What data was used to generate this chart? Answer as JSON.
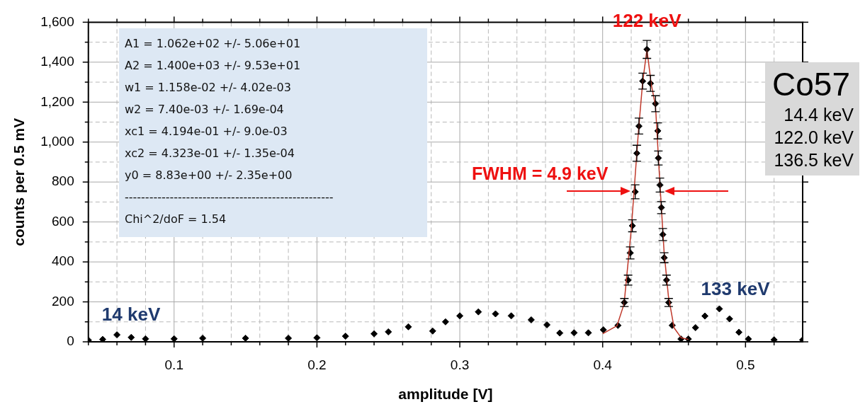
{
  "chart_data": {
    "type": "scatter",
    "xlabel": "amplitude [V]",
    "ylabel": "counts per 0.5 mV",
    "xlim": [
      0.04,
      0.54
    ],
    "xticks": [
      {
        "value": 0.04,
        "label": null
      },
      {
        "value": 0.06,
        "label": null
      },
      {
        "value": 0.08,
        "label": null
      },
      0.1,
      {
        "value": 0.12,
        "label": null
      },
      {
        "value": 0.14,
        "label": null
      },
      {
        "value": 0.16,
        "label": null
      },
      {
        "value": 0.18,
        "label": null
      },
      0.2,
      {
        "value": 0.22,
        "label": null
      },
      {
        "value": 0.24,
        "label": null
      },
      {
        "value": 0.26,
        "label": null
      },
      {
        "value": 0.28,
        "label": null
      },
      0.3,
      {
        "value": 0.32,
        "label": null
      },
      {
        "value": 0.34,
        "label": null
      },
      {
        "value": 0.36,
        "label": null
      },
      {
        "value": 0.38,
        "label": null
      },
      0.4,
      {
        "value": 0.42,
        "label": null
      },
      {
        "value": 0.44,
        "label": null
      },
      {
        "value": 0.46,
        "label": null
      },
      {
        "value": 0.48,
        "label": null
      },
      0.5,
      {
        "value": 0.52,
        "label": null
      }
    ],
    "ylim": [
      0,
      1600
    ],
    "yticks": [
      {
        "value": 0,
        "label": "0"
      },
      {
        "value": 100,
        "label": null
      },
      {
        "value": 200,
        "label": "200"
      },
      {
        "value": 300,
        "label": null
      },
      {
        "value": 400,
        "label": "400"
      },
      {
        "value": 500,
        "label": null
      },
      {
        "value": 600,
        "label": "600"
      },
      {
        "value": 700,
        "label": null
      },
      {
        "value": 800,
        "label": "800"
      },
      {
        "value": 900,
        "label": null
      },
      {
        "value": 1000,
        "label": "1,000"
      },
      {
        "value": 1100,
        "label": null
      },
      {
        "value": 1200,
        "label": "1,200"
      },
      {
        "value": 1300,
        "label": null
      },
      {
        "value": 1400,
        "label": "1,400"
      },
      {
        "value": 1500,
        "label": null
      },
      {
        "value": 1600,
        "label": "1,600"
      }
    ],
    "grid": true,
    "legend": false,
    "series": [
      {
        "marker": "diamond",
        "color": "#000000",
        "x": [
          0.04,
          0.05,
          0.06,
          0.07,
          0.08,
          0.1,
          0.12,
          0.15,
          0.18,
          0.2,
          0.22,
          0.24,
          0.25,
          0.264,
          0.281,
          0.29,
          0.3,
          0.313,
          0.325,
          0.336,
          0.35,
          0.361,
          0.37,
          0.38,
          0.39,
          0.4005,
          0.4107,
          0.4152,
          0.4178,
          0.4193,
          0.4208,
          0.4228,
          0.4239,
          0.4254,
          0.428,
          0.431,
          0.4335,
          0.437,
          0.4386,
          0.439,
          0.4401,
          0.4411,
          0.4421,
          0.4431,
          0.4447,
          0.4462,
          0.4487,
          0.4548,
          0.46,
          0.465,
          0.4716,
          0.4817,
          0.4888,
          0.4954,
          0.502,
          0.52,
          0.54
        ],
        "values": [
          8,
          12,
          35,
          22,
          15,
          15,
          18,
          18,
          18,
          20,
          28,
          40,
          50,
          75,
          54,
          100,
          130,
          150,
          140,
          130,
          110,
          85,
          44,
          45,
          45,
          60,
          82,
          197,
          309,
          445,
          581,
          751,
          944,
          1080,
          1305,
          1464,
          1294,
          1192,
          1056,
          920,
          785,
          672,
          537,
          421,
          309,
          197,
          82,
          14,
          14,
          71,
          129,
          165,
          115,
          48,
          14,
          10,
          10
        ],
        "errors": [
          null,
          null,
          null,
          null,
          null,
          null,
          null,
          null,
          null,
          null,
          null,
          null,
          null,
          null,
          null,
          null,
          null,
          null,
          null,
          null,
          null,
          null,
          null,
          null,
          null,
          null,
          null,
          20,
          25,
          30,
          30,
          35,
          40,
          40,
          40,
          45,
          40,
          40,
          40,
          35,
          35,
          30,
          30,
          25,
          25,
          20,
          null,
          null,
          null,
          null,
          null,
          null,
          null,
          null,
          null,
          null,
          null
        ]
      },
      {
        "type": "line",
        "color": "#c0392b",
        "x": [
          0.4,
          0.41,
          0.415,
          0.42,
          0.425,
          0.428,
          0.431,
          0.434,
          0.437,
          0.44,
          0.443,
          0.446,
          0.45,
          0.455,
          0.46
        ],
        "values": [
          40,
          80,
          190,
          560,
          1050,
          1300,
          1464,
          1290,
          1180,
          800,
          450,
          230,
          70,
          20,
          12
        ]
      }
    ],
    "annotations": [
      "A1 = 1.062e+02 +/- 5.06e+01",
      "A2 = 1.400e+03 +/- 9.53e+01",
      "w1 = 1.158e-02 +/- 4.02e-03",
      "w2 = 7.40e-03 +/- 1.69e-04",
      "xc1 = 4.194e-01 +/- 9.0e-03",
      "xc2 = 4.323e-01 +/- 1.35e-04",
      "y0 = 8.83e+00 +/- 2.35e+00",
      "---------------------------------------------------",
      "Chi^2/doF = 1.54",
      "Co57",
      "14.4 keV",
      "122.0 keV",
      "136.5 keV",
      "FWHM = 4.9 keV",
      {
        "text": "14 keV",
        "x": 0.06,
        "y": 35
      },
      {
        "text": "122 keV",
        "x": 0.431,
        "y": 1464
      },
      {
        "text": "133 keV",
        "x": 0.482,
        "y": 165
      }
    ]
  }
}
